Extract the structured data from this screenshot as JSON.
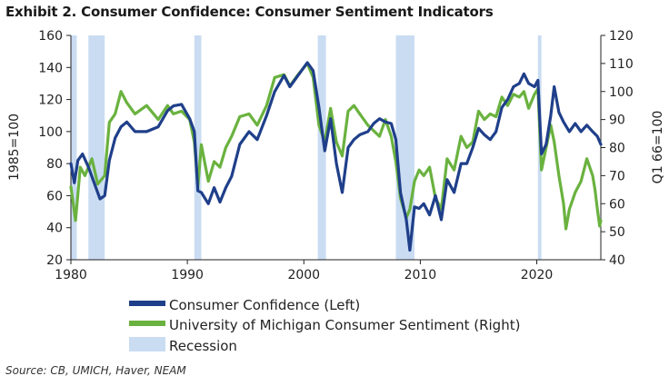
{
  "title": "Exhibit 2. Consumer Confidence: Consumer Sentiment Indicators",
  "source": "Source: CB, UMICH, Haver, NEAM",
  "colors": {
    "cc": "#1f3f8a",
    "um": "#6ab23f",
    "recession": "#c9dcf2"
  },
  "chart_data": {
    "type": "line",
    "title": "Exhibit 2. Consumer Confidence: Consumer Sentiment Indicators",
    "ylabel_left": "1985=100",
    "ylabel_right": "Q1 66=100",
    "xlim": [
      1980,
      2025.5
    ],
    "ylim_left": [
      20,
      160
    ],
    "ylim_right": [
      40,
      120
    ],
    "x_ticks": [
      "1980",
      "1990",
      "2000",
      "2010",
      "2020"
    ],
    "y_left_ticks": [
      "20",
      "40",
      "60",
      "80",
      "100",
      "120",
      "140",
      "160"
    ],
    "y_right_ticks": [
      "40",
      "50",
      "60",
      "70",
      "80",
      "90",
      "100",
      "110",
      "120"
    ],
    "recessions": [
      [
        1980.0,
        1980.5
      ],
      [
        1981.5,
        1982.9
      ],
      [
        1990.6,
        1991.2
      ],
      [
        2001.2,
        2001.9
      ],
      [
        2007.9,
        2009.5
      ],
      [
        2020.1,
        2020.4
      ]
    ],
    "series": [
      {
        "name": "Consumer Confidence (Left)",
        "axis": "left",
        "points": [
          [
            1980.0,
            80
          ],
          [
            1980.3,
            68
          ],
          [
            1980.6,
            82
          ],
          [
            1981.0,
            86
          ],
          [
            1981.5,
            78
          ],
          [
            1982.0,
            68
          ],
          [
            1982.5,
            58
          ],
          [
            1982.9,
            60
          ],
          [
            1983.3,
            82
          ],
          [
            1983.8,
            96
          ],
          [
            1984.3,
            103
          ],
          [
            1984.8,
            106
          ],
          [
            1985.5,
            100
          ],
          [
            1986.5,
            100
          ],
          [
            1987.5,
            103
          ],
          [
            1988.3,
            113
          ],
          [
            1988.8,
            116
          ],
          [
            1989.5,
            117
          ],
          [
            1990.2,
            108
          ],
          [
            1990.6,
            100
          ],
          [
            1990.9,
            63
          ],
          [
            1991.2,
            62
          ],
          [
            1991.8,
            55
          ],
          [
            1992.3,
            65
          ],
          [
            1992.8,
            56
          ],
          [
            1993.3,
            65
          ],
          [
            1993.8,
            72
          ],
          [
            1994.5,
            92
          ],
          [
            1995.3,
            100
          ],
          [
            1996.0,
            95
          ],
          [
            1996.8,
            110
          ],
          [
            1997.5,
            125
          ],
          [
            1998.3,
            135
          ],
          [
            1998.8,
            128
          ],
          [
            1999.5,
            135
          ],
          [
            2000.3,
            143
          ],
          [
            2000.8,
            138
          ],
          [
            2001.3,
            115
          ],
          [
            2001.8,
            88
          ],
          [
            2002.3,
            108
          ],
          [
            2002.8,
            80
          ],
          [
            2003.3,
            62
          ],
          [
            2003.8,
            90
          ],
          [
            2004.3,
            95
          ],
          [
            2004.8,
            98
          ],
          [
            2005.5,
            100
          ],
          [
            2006.0,
            105
          ],
          [
            2006.5,
            108
          ],
          [
            2007.0,
            106
          ],
          [
            2007.5,
            105
          ],
          [
            2007.9,
            95
          ],
          [
            2008.3,
            62
          ],
          [
            2008.8,
            45
          ],
          [
            2009.1,
            26
          ],
          [
            2009.5,
            53
          ],
          [
            2009.9,
            52
          ],
          [
            2010.3,
            55
          ],
          [
            2010.8,
            48
          ],
          [
            2011.3,
            60
          ],
          [
            2011.8,
            45
          ],
          [
            2012.3,
            70
          ],
          [
            2012.9,
            62
          ],
          [
            2013.5,
            80
          ],
          [
            2014.0,
            80
          ],
          [
            2014.5,
            90
          ],
          [
            2015.0,
            102
          ],
          [
            2015.5,
            98
          ],
          [
            2016.0,
            95
          ],
          [
            2016.5,
            100
          ],
          [
            2017.0,
            115
          ],
          [
            2017.5,
            120
          ],
          [
            2018.0,
            128
          ],
          [
            2018.5,
            130
          ],
          [
            2018.9,
            136
          ],
          [
            2019.3,
            130
          ],
          [
            2019.8,
            128
          ],
          [
            2020.1,
            132
          ],
          [
            2020.4,
            86
          ],
          [
            2020.8,
            92
          ],
          [
            2021.2,
            110
          ],
          [
            2021.5,
            128
          ],
          [
            2021.9,
            112
          ],
          [
            2022.3,
            106
          ],
          [
            2022.8,
            100
          ],
          [
            2023.3,
            105
          ],
          [
            2023.8,
            100
          ],
          [
            2024.3,
            104
          ],
          [
            2024.8,
            100
          ],
          [
            2025.2,
            97
          ],
          [
            2025.5,
            92
          ]
        ]
      },
      {
        "name": "University of Michigan Consumer Sentiment (Right)",
        "axis": "right",
        "points": [
          [
            1980.0,
            66
          ],
          [
            1980.4,
            54
          ],
          [
            1980.8,
            73
          ],
          [
            1981.2,
            70
          ],
          [
            1981.8,
            76
          ],
          [
            1982.3,
            67
          ],
          [
            1982.9,
            70
          ],
          [
            1983.3,
            89
          ],
          [
            1983.8,
            92
          ],
          [
            1984.3,
            100
          ],
          [
            1984.8,
            96
          ],
          [
            1985.5,
            92
          ],
          [
            1986.5,
            95
          ],
          [
            1987.5,
            90
          ],
          [
            1988.3,
            95
          ],
          [
            1988.8,
            92
          ],
          [
            1989.5,
            93
          ],
          [
            1990.2,
            90
          ],
          [
            1990.6,
            82
          ],
          [
            1990.9,
            66
          ],
          [
            1991.2,
            81
          ],
          [
            1991.8,
            68
          ],
          [
            1992.3,
            75
          ],
          [
            1992.8,
            73
          ],
          [
            1993.3,
            80
          ],
          [
            1993.8,
            84
          ],
          [
            1994.5,
            91
          ],
          [
            1995.3,
            92
          ],
          [
            1996.0,
            88
          ],
          [
            1996.8,
            95
          ],
          [
            1997.5,
            105
          ],
          [
            1998.3,
            106
          ],
          [
            1998.8,
            102
          ],
          [
            1999.5,
            106
          ],
          [
            2000.3,
            110
          ],
          [
            2000.8,
            105
          ],
          [
            2001.3,
            88
          ],
          [
            2001.8,
            82
          ],
          [
            2002.3,
            94
          ],
          [
            2002.8,
            82
          ],
          [
            2003.3,
            77
          ],
          [
            2003.8,
            93
          ],
          [
            2004.3,
            95
          ],
          [
            2004.8,
            92
          ],
          [
            2005.5,
            88
          ],
          [
            2006.0,
            86
          ],
          [
            2006.5,
            84
          ],
          [
            2007.0,
            90
          ],
          [
            2007.5,
            84
          ],
          [
            2007.9,
            75
          ],
          [
            2008.3,
            62
          ],
          [
            2008.8,
            55
          ],
          [
            2009.1,
            58
          ],
          [
            2009.5,
            68
          ],
          [
            2009.9,
            72
          ],
          [
            2010.3,
            70
          ],
          [
            2010.8,
            73
          ],
          [
            2011.3,
            62
          ],
          [
            2011.8,
            58
          ],
          [
            2012.3,
            76
          ],
          [
            2012.9,
            72
          ],
          [
            2013.5,
            84
          ],
          [
            2014.0,
            80
          ],
          [
            2014.5,
            82
          ],
          [
            2015.0,
            93
          ],
          [
            2015.5,
            90
          ],
          [
            2016.0,
            92
          ],
          [
            2016.5,
            91
          ],
          [
            2017.0,
            98
          ],
          [
            2017.5,
            95
          ],
          [
            2018.0,
            99
          ],
          [
            2018.5,
            98
          ],
          [
            2018.9,
            100
          ],
          [
            2019.3,
            94
          ],
          [
            2019.8,
            99
          ],
          [
            2020.1,
            101
          ],
          [
            2020.4,
            72
          ],
          [
            2020.8,
            80
          ],
          [
            2021.2,
            88
          ],
          [
            2021.5,
            82
          ],
          [
            2021.9,
            70
          ],
          [
            2022.3,
            60
          ],
          [
            2022.5,
            51
          ],
          [
            2022.8,
            58
          ],
          [
            2023.3,
            64
          ],
          [
            2023.8,
            68
          ],
          [
            2024.3,
            76
          ],
          [
            2024.8,
            70
          ],
          [
            2025.0,
            65
          ],
          [
            2025.2,
            58
          ],
          [
            2025.4,
            52
          ],
          [
            2025.5,
            54
          ]
        ]
      }
    ],
    "legend": [
      {
        "label": "Consumer Confidence (Left)",
        "kind": "line",
        "color": "#1f3f8a"
      },
      {
        "label": "University of Michigan Consumer Sentiment (Right)",
        "kind": "line",
        "color": "#6ab23f"
      },
      {
        "label": "Recession",
        "kind": "box",
        "color": "#c9dcf2"
      }
    ]
  }
}
